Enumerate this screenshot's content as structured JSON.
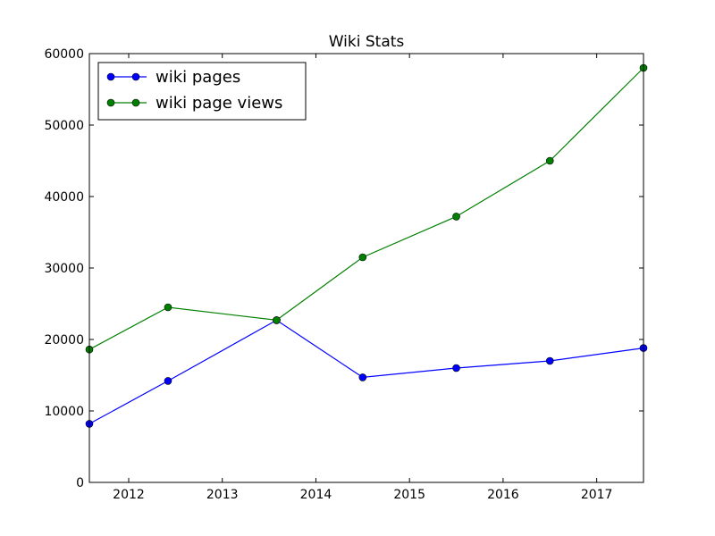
{
  "chart_data": {
    "type": "line",
    "title": "Wiki Stats",
    "xlabel": "",
    "ylabel": "",
    "xlim": [
      2011.58,
      2017.5
    ],
    "ylim": [
      0,
      60000
    ],
    "x_ticks": [
      2012,
      2013,
      2014,
      2015,
      2016,
      2017
    ],
    "y_ticks": [
      0,
      10000,
      20000,
      30000,
      40000,
      50000,
      60000
    ],
    "grid": false,
    "legend_position": "top-left",
    "series": [
      {
        "name": "wiki pages",
        "color": "#0000ff",
        "marker": "circle",
        "x": [
          2011.58,
          2012.42,
          2013.58,
          2014.5,
          2015.5,
          2016.5,
          2017.5
        ],
        "y": [
          8200,
          14200,
          22700,
          14700,
          16000,
          17000,
          18800
        ]
      },
      {
        "name": "wiki page views",
        "color": "#008000",
        "marker": "circle",
        "x": [
          2011.58,
          2012.42,
          2013.58,
          2014.5,
          2015.5,
          2016.5,
          2017.5
        ],
        "y": [
          18600,
          24500,
          22700,
          31500,
          37200,
          45000,
          58000
        ]
      }
    ]
  }
}
